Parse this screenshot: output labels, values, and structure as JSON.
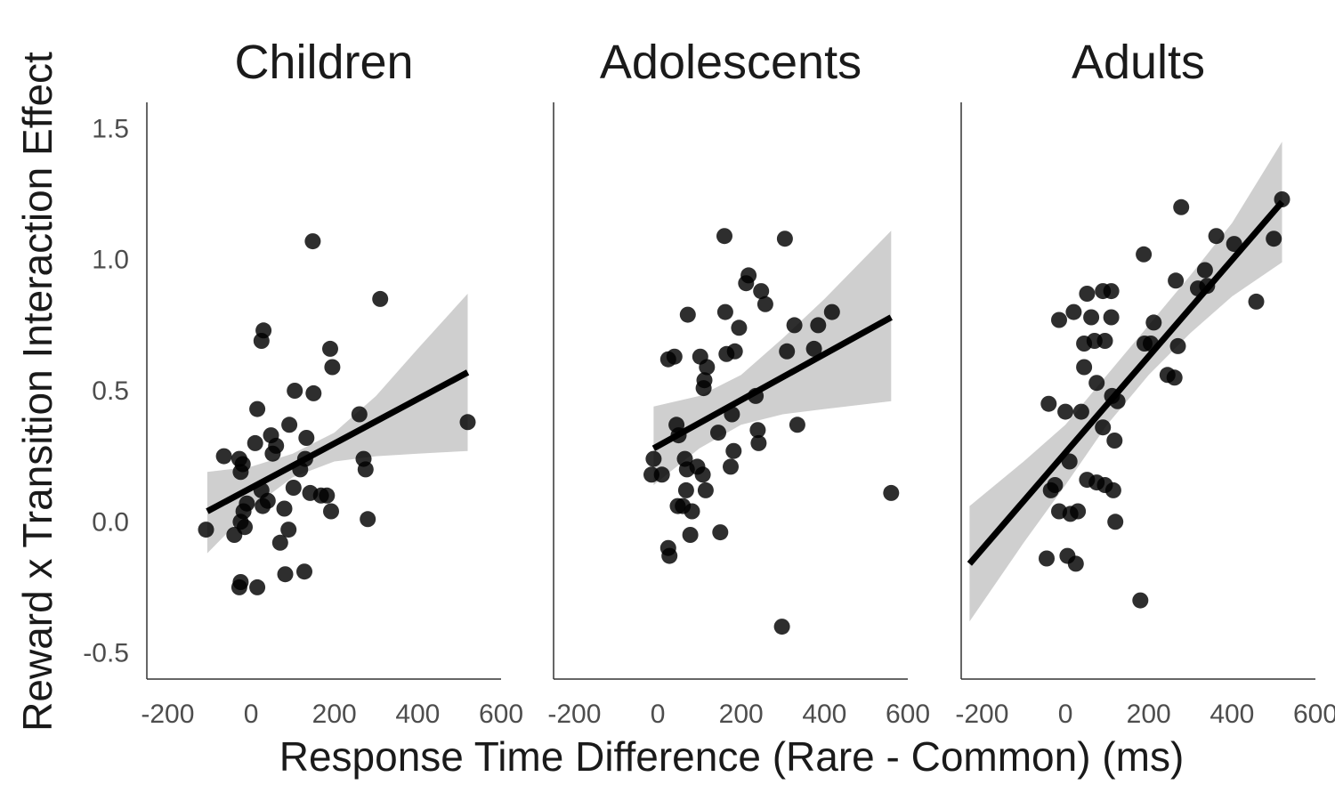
{
  "figure": {
    "ylabel": "Reward x Transition Interaction Effect",
    "xlabel": "Response Time Difference (Rare - Common) (ms)"
  },
  "chart_data": [
    {
      "type": "scatter",
      "title": "Children",
      "xlim": [
        -250,
        600
      ],
      "ylim": [
        -0.6,
        1.6
      ],
      "xticks": [
        -200,
        0,
        200,
        400,
        600
      ],
      "yticks": [
        -0.5,
        0.0,
        0.5,
        1.0,
        1.5
      ],
      "grid": false,
      "fit": {
        "x": [
          -105,
          520
        ],
        "y": [
          0.04,
          0.57
        ]
      },
      "ci": {
        "x": [
          -105,
          0,
          100,
          200,
          300,
          400,
          520
        ],
        "lower": [
          -0.12,
          0.05,
          0.17,
          0.23,
          0.25,
          0.26,
          0.27
        ],
        "upper": [
          0.19,
          0.21,
          0.26,
          0.34,
          0.48,
          0.66,
          0.87
        ]
      },
      "points": [
        [
          -108,
          -0.03
        ],
        [
          -65,
          0.25
        ],
        [
          -40,
          -0.05
        ],
        [
          -28,
          0.24
        ],
        [
          -25,
          0.19
        ],
        [
          -20,
          0.22
        ],
        [
          -25,
          0.0
        ],
        [
          -15,
          -0.02
        ],
        [
          -28,
          -0.25
        ],
        [
          -25,
          -0.23
        ],
        [
          -18,
          0.04
        ],
        [
          -10,
          0.07
        ],
        [
          15,
          -0.25
        ],
        [
          10,
          0.3
        ],
        [
          15,
          0.43
        ],
        [
          25,
          0.69
        ],
        [
          30,
          0.73
        ],
        [
          25,
          0.12
        ],
        [
          28,
          0.06
        ],
        [
          40,
          0.08
        ],
        [
          48,
          0.33
        ],
        [
          52,
          0.26
        ],
        [
          60,
          0.29
        ],
        [
          70,
          -0.08
        ],
        [
          80,
          0.05
        ],
        [
          90,
          -0.03
        ],
        [
          82,
          -0.2
        ],
        [
          92,
          0.37
        ],
        [
          102,
          0.13
        ],
        [
          105,
          0.5
        ],
        [
          118,
          0.2
        ],
        [
          130,
          0.24
        ],
        [
          133,
          0.32
        ],
        [
          128,
          -0.19
        ],
        [
          142,
          0.11
        ],
        [
          148,
          1.07
        ],
        [
          150,
          0.49
        ],
        [
          168,
          0.1
        ],
        [
          182,
          0.1
        ],
        [
          190,
          0.66
        ],
        [
          195,
          0.59
        ],
        [
          192,
          0.04
        ],
        [
          260,
          0.41
        ],
        [
          270,
          0.24
        ],
        [
          275,
          0.2
        ],
        [
          280,
          0.01
        ],
        [
          310,
          0.85
        ],
        [
          520,
          0.38
        ]
      ]
    },
    {
      "type": "scatter",
      "title": "Adolescents",
      "xlim": [
        -250,
        600
      ],
      "ylim": [
        -0.6,
        1.6
      ],
      "xticks": [
        -200,
        0,
        200,
        400,
        600
      ],
      "yticks": [
        -0.5,
        0.0,
        0.5,
        1.0,
        1.5
      ],
      "grid": false,
      "fit": {
        "x": [
          -10,
          560
        ],
        "y": [
          0.28,
          0.78
        ]
      },
      "ci": {
        "x": [
          -10,
          100,
          200,
          300,
          400,
          560
        ],
        "lower": [
          0.14,
          0.28,
          0.37,
          0.41,
          0.43,
          0.46
        ],
        "upper": [
          0.44,
          0.48,
          0.56,
          0.7,
          0.85,
          1.11
        ]
      },
      "points": [
        [
          -10,
          0.24
        ],
        [
          -15,
          0.18
        ],
        [
          10,
          0.18
        ],
        [
          25,
          -0.1
        ],
        [
          28,
          -0.13
        ],
        [
          25,
          0.62
        ],
        [
          40,
          0.63
        ],
        [
          45,
          0.37
        ],
        [
          50,
          0.33
        ],
        [
          48,
          0.06
        ],
        [
          60,
          0.06
        ],
        [
          65,
          0.24
        ],
        [
          68,
          0.12
        ],
        [
          70,
          0.2
        ],
        [
          72,
          0.79
        ],
        [
          82,
          0.04
        ],
        [
          78,
          -0.05
        ],
        [
          95,
          0.21
        ],
        [
          102,
          0.63
        ],
        [
          108,
          0.18
        ],
        [
          110,
          0.51
        ],
        [
          112,
          0.54
        ],
        [
          115,
          0.12
        ],
        [
          118,
          0.59
        ],
        [
          145,
          0.34
        ],
        [
          150,
          -0.04
        ],
        [
          160,
          1.09
        ],
        [
          162,
          0.8
        ],
        [
          165,
          0.64
        ],
        [
          175,
          0.21
        ],
        [
          178,
          0.41
        ],
        [
          182,
          0.27
        ],
        [
          185,
          0.65
        ],
        [
          195,
          0.74
        ],
        [
          212,
          0.91
        ],
        [
          218,
          0.94
        ],
        [
          235,
          0.48
        ],
        [
          240,
          0.35
        ],
        [
          242,
          0.3
        ],
        [
          248,
          0.88
        ],
        [
          258,
          0.83
        ],
        [
          298,
          -0.4
        ],
        [
          305,
          1.08
        ],
        [
          310,
          0.65
        ],
        [
          328,
          0.75
        ],
        [
          335,
          0.37
        ],
        [
          375,
          0.66
        ],
        [
          385,
          0.75
        ],
        [
          418,
          0.8
        ],
        [
          560,
          0.11
        ]
      ]
    },
    {
      "type": "scatter",
      "title": "Adults",
      "xlim": [
        -250,
        600
      ],
      "ylim": [
        -0.6,
        1.6
      ],
      "xticks": [
        -200,
        0,
        200,
        400,
        600
      ],
      "yticks": [
        -0.5,
        0.0,
        0.5,
        1.0,
        1.5
      ],
      "grid": false,
      "fit": {
        "x": [
          -230,
          520
        ],
        "y": [
          -0.16,
          1.22
        ]
      },
      "ci": {
        "x": [
          -230,
          -100,
          0,
          100,
          200,
          300,
          400,
          520
        ],
        "lower": [
          -0.38,
          -0.08,
          0.14,
          0.37,
          0.56,
          0.72,
          0.86,
          0.99
        ],
        "upper": [
          0.06,
          0.23,
          0.37,
          0.56,
          0.75,
          0.94,
          1.14,
          1.45
        ]
      },
      "points": [
        [
          -40,
          0.45
        ],
        [
          -45,
          -0.14
        ],
        [
          -35,
          0.12
        ],
        [
          -25,
          0.14
        ],
        [
          -15,
          0.77
        ],
        [
          -15,
          0.04
        ],
        [
          0,
          0.42
        ],
        [
          5,
          -0.13
        ],
        [
          10,
          0.23
        ],
        [
          12,
          0.03
        ],
        [
          20,
          0.8
        ],
        [
          25,
          -0.16
        ],
        [
          30,
          0.04
        ],
        [
          38,
          0.42
        ],
        [
          45,
          0.59
        ],
        [
          45,
          0.68
        ],
        [
          52,
          0.87
        ],
        [
          52,
          0.16
        ],
        [
          62,
          0.78
        ],
        [
          70,
          0.69
        ],
        [
          75,
          0.53
        ],
        [
          75,
          0.15
        ],
        [
          90,
          0.88
        ],
        [
          90,
          0.36
        ],
        [
          95,
          0.69
        ],
        [
          95,
          0.14
        ],
        [
          110,
          0.88
        ],
        [
          110,
          0.78
        ],
        [
          112,
          0.48
        ],
        [
          115,
          0.12
        ],
        [
          118,
          0.31
        ],
        [
          120,
          0.0
        ],
        [
          125,
          0.46
        ],
        [
          180,
          -0.3
        ],
        [
          188,
          1.02
        ],
        [
          190,
          0.68
        ],
        [
          205,
          0.68
        ],
        [
          212,
          0.76
        ],
        [
          245,
          0.56
        ],
        [
          262,
          0.55
        ],
        [
          265,
          0.92
        ],
        [
          270,
          0.67
        ],
        [
          278,
          1.2
        ],
        [
          318,
          0.89
        ],
        [
          335,
          0.96
        ],
        [
          340,
          0.9
        ],
        [
          362,
          1.09
        ],
        [
          405,
          1.06
        ],
        [
          458,
          0.84
        ],
        [
          500,
          1.08
        ],
        [
          520,
          1.23
        ]
      ]
    }
  ]
}
